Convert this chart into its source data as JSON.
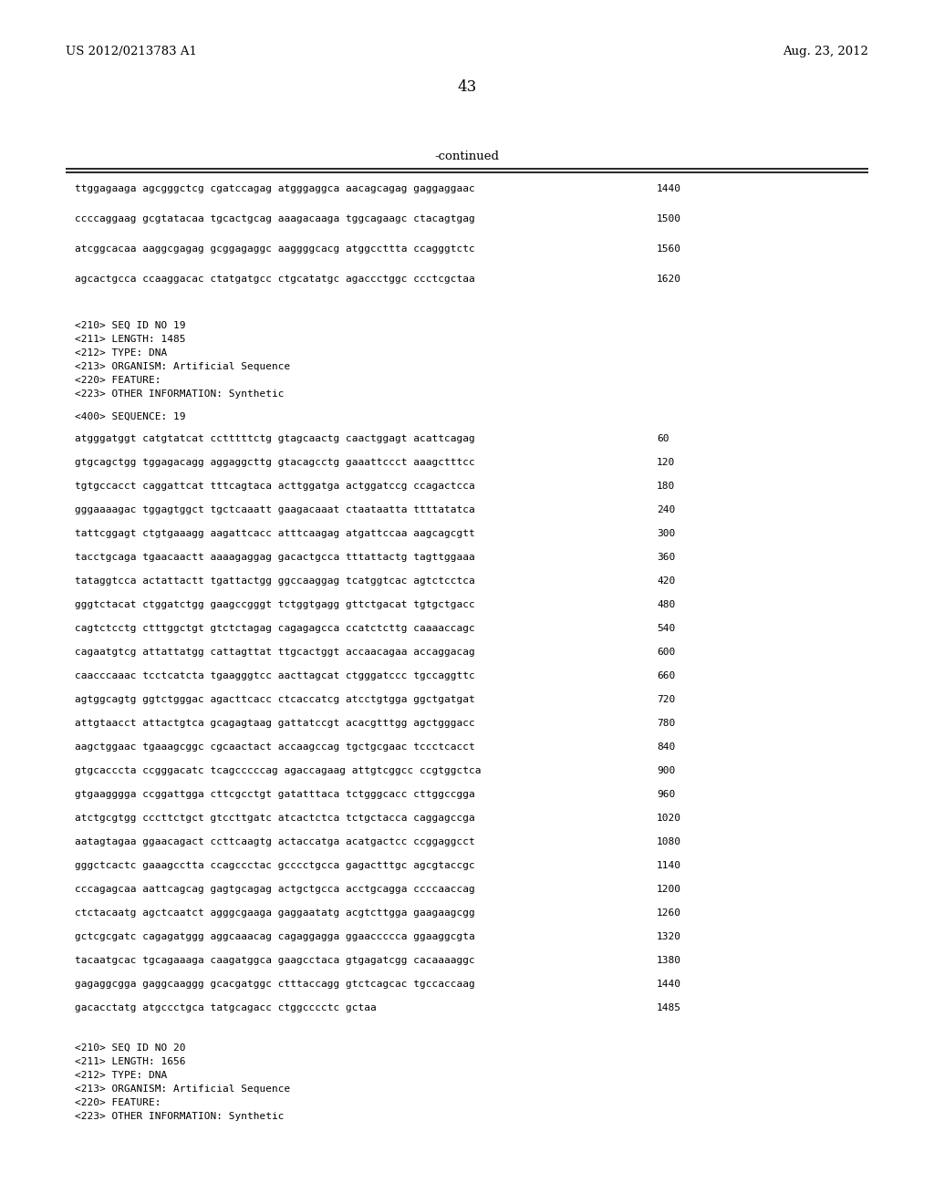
{
  "header_left": "US 2012/0213783 A1",
  "header_right": "Aug. 23, 2012",
  "page_number": "43",
  "continued_label": "-continued",
  "background_color": "#ffffff",
  "text_color": "#000000",
  "sequence_lines": [
    [
      "ttggagaaga agcgggctcg cgatccagag atgggaggca aacagcagag gaggaggaac",
      "1440"
    ],
    [
      "ccccaggaag gcgtatacaa tgcactgcag aaagacaaga tggcagaagc ctacagtgag",
      "1500"
    ],
    [
      "atcggcacaa aaggcgagag gcggagaggc aaggggcacg atggccttta ccagggtctc",
      "1560"
    ],
    [
      "agcactgcca ccaaggacac ctatgatgcc ctgcatatgc agaccctggc ccctcgctaa",
      "1620"
    ]
  ],
  "metadata_lines": [
    "<210> SEQ ID NO 19",
    "<211> LENGTH: 1485",
    "<212> TYPE: DNA",
    "<213> ORGANISM: Artificial Sequence",
    "<220> FEATURE:",
    "<223> OTHER INFORMATION: Synthetic"
  ],
  "seq_label": "<400> SEQUENCE: 19",
  "dna_lines": [
    [
      "atgggatggt catgtatcat cctttttctg gtagcaactg caactggagt acattcagag",
      "60"
    ],
    [
      "gtgcagctgg tggagacagg aggaggcttg gtacagcctg gaaattccct aaagctttcc",
      "120"
    ],
    [
      "tgtgccacct caggattcat tttcagtaca acttggatga actggatccg ccagactcca",
      "180"
    ],
    [
      "gggaaaagac tggagtggct tgctcaaatt gaagacaaat ctaataatta ttttatatca",
      "240"
    ],
    [
      "tattcggagt ctgtgaaagg aagattcacc atttcaagag atgattccaa aagcagcgtt",
      "300"
    ],
    [
      "tacctgcaga tgaacaactt aaaagaggag gacactgcca tttattactg tagttggaaa",
      "360"
    ],
    [
      "tataggtcca actattactt tgattactgg ggccaaggag tcatggtcac agtctcctca",
      "420"
    ],
    [
      "gggtctacat ctggatctgg gaagccgggt tctggtgagg gttctgacat tgtgctgacc",
      "480"
    ],
    [
      "cagtctcctg ctttggctgt gtctctagag cagagagcca ccatctcttg caaaaccagc",
      "540"
    ],
    [
      "cagaatgtcg attattatgg cattagttat ttgcactggt accaacagaa accaggacag",
      "600"
    ],
    [
      "caacccaaac tcctcatcta tgaagggtcc aacttagcat ctgggatccc tgccaggttc",
      "660"
    ],
    [
      "agtggcagtg ggtctgggac agacttcacc ctcaccatcg atcctgtgga ggctgatgat",
      "720"
    ],
    [
      "attgtaacct attactgtca gcagagtaag gattatccgt acacgtttgg agctgggacc",
      "780"
    ],
    [
      "aagctggaac tgaaagcggc cgcaactact accaagccag tgctgcgaac tccctcacct",
      "840"
    ],
    [
      "gtgcacccta ccgggacatc tcagcccccag agaccagaag attgtcggcc ccgtggctca",
      "900"
    ],
    [
      "gtgaagggga ccggattgga cttcgcctgt gatatttaca tctgggcacc cttggccgga",
      "960"
    ],
    [
      "atctgcgtgg cccttctgct gtccttgatc atcactctca tctgctacca caggagccga",
      "1020"
    ],
    [
      "aatagtagaa ggaacagact ccttcaagtg actaccatga acatgactcc ccggaggcct",
      "1080"
    ],
    [
      "gggctcactc gaaagcctta ccagccctac gcccctgcca gagactttgc agcgtaccgc",
      "1140"
    ],
    [
      "cccagagcaa aattcagcag gagtgcagag actgctgcca acctgcagga ccccaaccag",
      "1200"
    ],
    [
      "ctctacaatg agctcaatct agggcgaaga gaggaatatg acgtcttgga gaagaagcgg",
      "1260"
    ],
    [
      "gctcgcgatc cagagatggg aggcaaacag cagaggagga ggaaccccca ggaaggcgta",
      "1320"
    ],
    [
      "tacaatgcac tgcagaaaga caagatggca gaagcctaca gtgagatcgg cacaaaaggc",
      "1380"
    ],
    [
      "gagaggcgga gaggcaaggg gcacgatggc ctttaccagg gtctcagcac tgccaccaag",
      "1440"
    ],
    [
      "gacacctatg atgccctgca tatgcagacc ctggcccctc gctaa",
      "1485"
    ]
  ],
  "metadata2_lines": [
    "<210> SEQ ID NO 20",
    "<211> LENGTH: 1656",
    "<212> TYPE: DNA",
    "<213> ORGANISM: Artificial Sequence",
    "<220> FEATURE:",
    "<223> OTHER INFORMATION: Synthetic"
  ]
}
